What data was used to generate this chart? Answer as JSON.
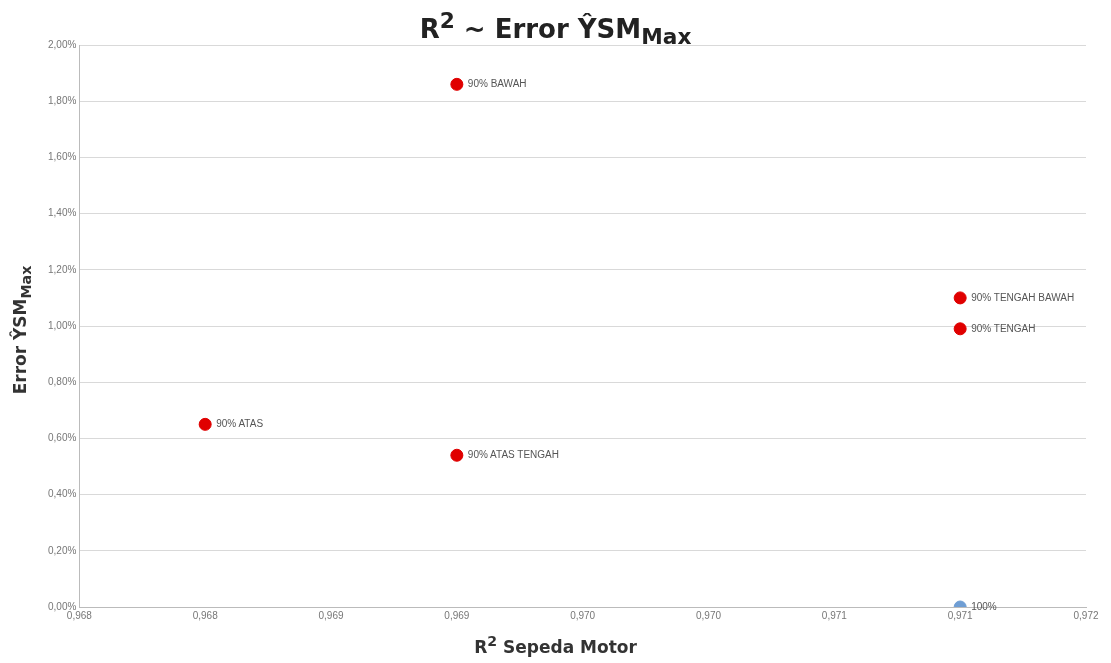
{
  "chart_data": {
    "type": "scatter",
    "title": "R$^{2}$ ~ Error ŶSM$_{Max}$",
    "xlabel": "R$^{2}$ Sepeda Motor",
    "ylabel": "Error ŶSM$_{Max}$",
    "series": [
      {
        "color": "#e00000",
        "x": [
          0.968,
          0.969,
          0.969,
          0.971,
          0.971
        ],
        "values": [
          0.65,
          1.86,
          0.54,
          1.1,
          0.99
        ]
      },
      {
        "color": "#6f9ed4",
        "x": [
          0.971
        ],
        "values": [
          0
        ]
      }
    ],
    "xlim": [
      0.9675,
      0.9715
    ],
    "xticks": [
      {
        "value": 0.9675,
        "label": "0,968"
      },
      {
        "value": 0.968,
        "label": "0,968"
      },
      {
        "value": 0.9685,
        "label": "0,969"
      },
      {
        "value": 0.969,
        "label": "0,969"
      },
      {
        "value": 0.9695,
        "label": "0,970"
      },
      {
        "value": 0.97,
        "label": "0,970"
      },
      {
        "value": 0.9705,
        "label": "0,971"
      },
      {
        "value": 0.971,
        "label": "0,971"
      },
      {
        "value": 0.9715,
        "label": "0,972"
      }
    ],
    "ylim": [
      0,
      2
    ],
    "yticks": [
      {
        "value": 0,
        "label": "0,00%"
      },
      {
        "value": 0.2,
        "label": "0,20%"
      },
      {
        "value": 0.4,
        "label": "0,40%"
      },
      {
        "value": 0.6,
        "label": "0,60%"
      },
      {
        "value": 0.8,
        "label": "0,80%"
      },
      {
        "value": 1,
        "label": "1,00%"
      },
      {
        "value": 1.2,
        "label": "1,20%"
      },
      {
        "value": 1.4,
        "label": "1,40%"
      },
      {
        "value": 1.6,
        "label": "1,60%"
      },
      {
        "value": 1.8,
        "label": "1,80%"
      },
      {
        "value": 2,
        "label": "2,00%"
      }
    ],
    "annotations": [
      {
        "text": "90% ATAS",
        "x": 0.968,
        "y": 0.65
      },
      {
        "text": "90% BAWAH",
        "x": 0.969,
        "y": 1.86
      },
      {
        "text": "90% ATAS TENGAH",
        "x": 0.969,
        "y": 0.54
      },
      {
        "text": "90% TENGAH BAWAH",
        "x": 0.971,
        "y": 1.1
      },
      {
        "text": "90% TENGAH",
        "x": 0.971,
        "y": 0.99
      },
      {
        "text": "100%",
        "x": 0.971,
        "y": 0
      }
    ],
    "grid": "y",
    "legend": false,
    "marker": "circle"
  }
}
